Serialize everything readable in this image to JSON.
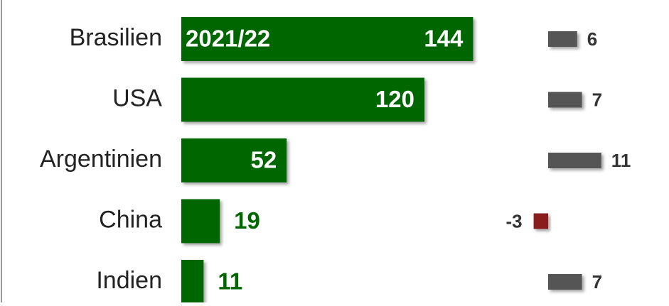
{
  "chart_data": {
    "type": "bar",
    "categories": [
      "Brasilien",
      "USA",
      "Argentinien",
      "China",
      "Indien"
    ],
    "series": [
      {
        "name": "2021/22",
        "color": "#006600",
        "values": [
          144,
          120,
          52,
          19,
          11
        ]
      },
      {
        "color": "#555555",
        "negative_color": "#8b1e1e",
        "values": [
          6,
          7,
          11,
          -3,
          7
        ]
      }
    ]
  }
}
